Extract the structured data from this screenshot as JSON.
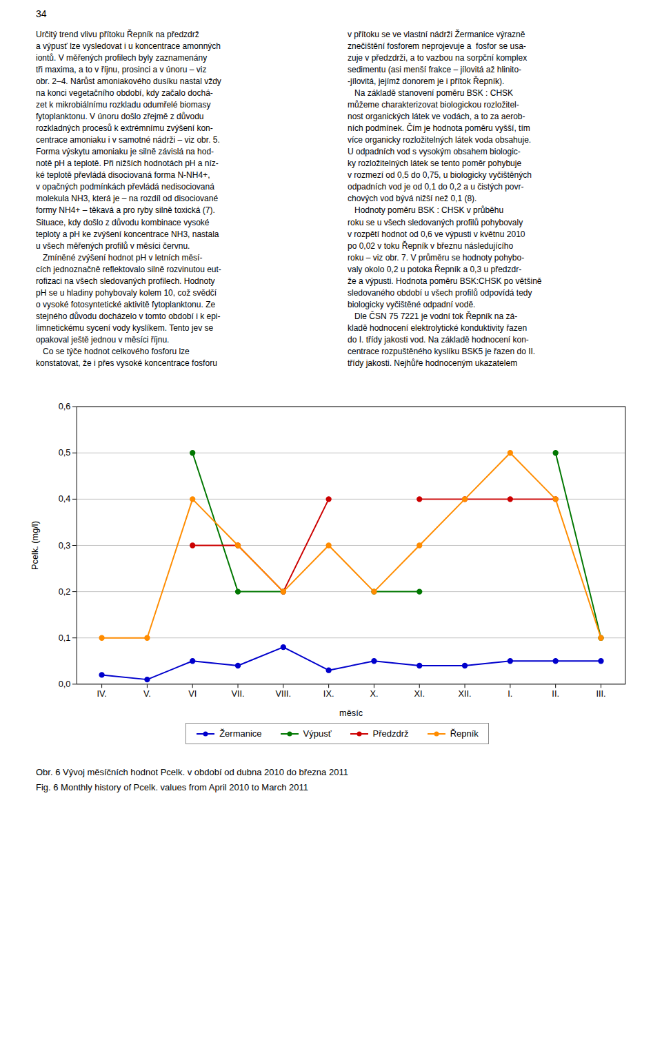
{
  "chart_data": {
    "type": "line",
    "categories": [
      "IV.",
      "V.",
      "VI",
      "VII.",
      "VIII.",
      "IX.",
      "X.",
      "XI.",
      "XII.",
      "I.",
      "II.",
      "III."
    ],
    "series": [
      {
        "name": "Žermanice",
        "color": "#0000CC",
        "values": [
          0.02,
          0.01,
          0.05,
          0.04,
          0.08,
          0.03,
          0.05,
          0.04,
          0.04,
          0.05,
          0.05,
          0.05
        ]
      },
      {
        "name": "Výpusť",
        "color": "#007700",
        "values": [
          null,
          null,
          0.5,
          0.2,
          0.2,
          null,
          0.2,
          0.2,
          null,
          null,
          0.5,
          0.1
        ]
      },
      {
        "name": "Předzdrž",
        "color": "#CC0000",
        "values": [
          null,
          null,
          0.3,
          0.3,
          0.2,
          0.4,
          null,
          0.4,
          0.4,
          0.4,
          0.4,
          null
        ]
      },
      {
        "name": "Řepník",
        "color": "#FF8C00",
        "values": [
          0.1,
          0.1,
          0.4,
          0.3,
          0.2,
          0.3,
          0.2,
          0.3,
          0.4,
          0.5,
          0.4,
          0.1
        ]
      }
    ],
    "xlabel": "měsíc",
    "ylabel": "Pcelk. (mg/l)",
    "ylim": [
      0,
      0.6
    ],
    "yticks": [
      {
        "value": 0,
        "label": "0,0"
      },
      {
        "value": 0.1,
        "label": "0,1"
      },
      {
        "value": 0.2,
        "label": "0,2"
      },
      {
        "value": 0.3,
        "label": "0,3"
      },
      {
        "value": 0.4,
        "label": "0,4"
      },
      {
        "value": 0.5,
        "label": "0,5"
      },
      {
        "value": 0.6,
        "label": "0,6"
      }
    ],
    "grid": true,
    "legend": "bottom",
    "marker": "circle",
    "annotations": [
      "34",
      "Určitý trend vlivu přítoku Řepník na předzdrž\na výpusť lze vysledovat i u koncentrace amonných\niontů. V měřených profilech byly zaznamenány\ntři maxima, a to v říjnu, prosinci a v únoru – viz\nobr. 2–4. Nárůst amoniakového dusíku nastal vždy\nna konci vegetačního období, kdy začalo dochá-\nzet k mikrobiálnímu rozkladu odumřelé biomasy\nfytoplanktonu. V únoru došlo zřejmě z důvodu\nrozkladných procesů k extrémnímu zvýšení kon-\ncentrace amoniaku i v samotné nádrži – viz obr. 5.\nForma výskytu amoniaku je silně závislá na hod-\nnotě pH a teplotě. Při nižších hodnotách pH a níz-\nké teplotě převládá disociovaná forma N-NH4+,\nv opačných podmínkách převládá nedisociovaná\nmolekula NH3, která je – na rozdíl od disociované\nformy NH4+ – těkavá a pro ryby silně toxická (7).\nSituace, kdy došlo z důvodu kombinace vysoké\nteploty a pH ke zvýšení koncentrace NH3, nastala\nu všech měřených profilů v měsíci červnu.\n   Zmíněné zvýšení hodnot pH v letních měsí-\ncích jednoznačně reflektovalo silně rozvinutou eut-\nrofizaci na všech sledovaných profilech. Hodnoty\npH se u hladiny pohybovaly kolem 10, což svědčí\no vysoké fotosyntetické aktivitě fytoplanktonu. Ze\nstejného důvodu docházelo v tomto období i k epi-\nlimnetickému sycení vody kyslíkem. Tento jev se\nopakoval ještě jednou v měsíci říjnu.\n   Co se týče hodnot celkového fosforu lze\nkonstatovat, že i přes vysoké koncentrace fosforu",
      "v přítoku se ve vlastní nádrži Žermanice výrazně\nznečištění fosforem neprojevuje a  fosfor se usa-\nzuje v předzdrži, a to vazbou na sorpční komplex\nsedimentu (asi menší frakce – jílovitá až hlinito-\n-jílovitá, jejímž donorem je i přítok Řepník).\n   Na základě stanovení poměru BSK : CHSK\nmůžeme charakterizovat biologickou rozložitel-\nnost organických látek ve vodách, a to za aerob-\nních podmínek. Čím je hodnota poměru vyšší, tím\nvíce organicky rozložitelných látek voda obsahuje.\nU odpadních vod s vysokým obsahem biologic-\nky rozložitelných látek se tento poměr pohybuje\nv rozmezí od 0,5 do 0,75, u biologicky vyčištěných\nodpadních vod je od 0,1 do 0,2 a u čistých povr-\nchových vod bývá nižší než 0,1 (8).\n   Hodnoty poměru BSK : CHSK v průběhu\nroku se u všech sledovaných profilů pohybovaly\nv rozpětí hodnot od 0,6 ve výpusti v květnu 2010\npo 0,02 v toku Řepník v březnu následujícího\nroku – viz obr. 7. V průměru se hodnoty pohybo-\nvaly okolo 0,2 u potoka Řepník a 0,3 u předzdr-\nže a výpusti. Hodnota poměru BSK:CHSK po většině\nsledovaného období u všech profilů odpovídá tedy\nbiologicky vyčištěné odpadní vodě.\n   Dle ČSN 75 7221 je vodní tok Řepník na zá-\nkladě hodnocení elektrolytické konduktivity řazen\ndo I. třídy jakosti vod. Na základě hodnocení kon-\ncentrace rozpuštěného kyslíku BSK5 je řazen do II.\ntřídy jakosti. Nejhůře hodnoceným ukazatelem",
      "Obr. 6  Vývoj měsíčních hodnot Pcelk. v období od dubna 2010 do března 2011",
      "Fig. 6  Monthly history of Pcelk. values from April 2010 to March 2011"
    ]
  }
}
